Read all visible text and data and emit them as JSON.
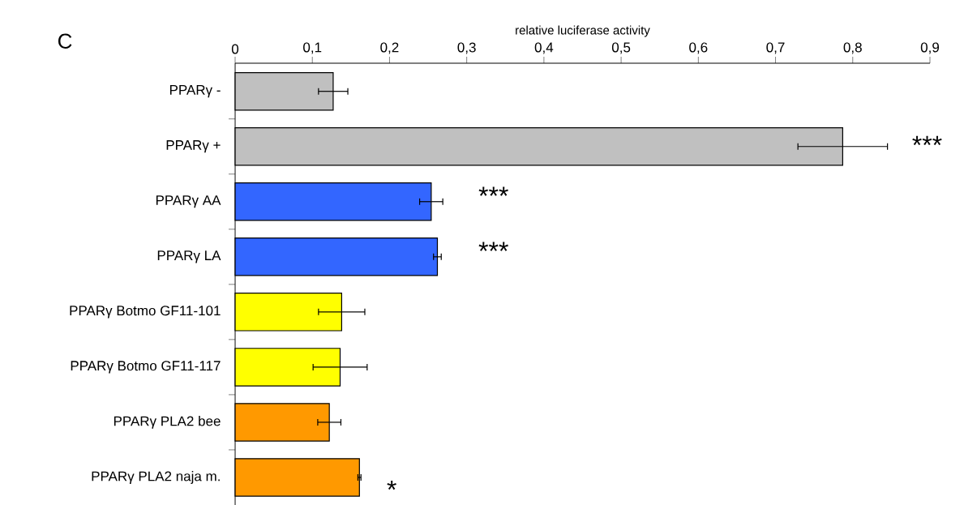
{
  "chart_data": {
    "type": "bar",
    "orientation": "horizontal",
    "xlabel": "relative luciferase activity",
    "categories": [
      "PPARγ -",
      "PPARγ +",
      "PPARγ AA",
      "PPARγ LA",
      "PPARγ Botmo GF11-101",
      "PPARγ Botmo GF11-117",
      "PPARγ PLA2 bee",
      "PPARγ PLA2 naja m."
    ],
    "values": [
      0.127,
      0.787,
      0.254,
      0.262,
      0.138,
      0.136,
      0.122,
      0.161
    ],
    "errors": [
      0.019,
      0.058,
      0.015,
      0.005,
      0.03,
      0.035,
      0.015,
      0.002
    ],
    "colors": [
      "#c0c0c0",
      "#c0c0c0",
      "#3366ff",
      "#3366ff",
      "#ffff00",
      "#ffff00",
      "#ff9900",
      "#ff9900"
    ],
    "xlim": [
      0,
      0.9
    ],
    "xticks": [
      0,
      {
        "value": 0.1,
        "label": "0,1"
      },
      {
        "value": 0.2,
        "label": "0,2"
      },
      {
        "value": 0.3,
        "label": "0,3"
      },
      {
        "value": 0.4,
        "label": "0,4"
      },
      {
        "value": 0.5,
        "label": "0,5"
      },
      {
        "value": 0.6,
        "label": "0,6"
      },
      {
        "value": 0.7,
        "label": "0,7"
      },
      {
        "value": 0.8,
        "label": "0,8"
      },
      {
        "value": 0.9,
        "label": "0,9"
      }
    ],
    "annotations": [
      "C",
      "***",
      "***",
      "***",
      "*"
    ]
  }
}
